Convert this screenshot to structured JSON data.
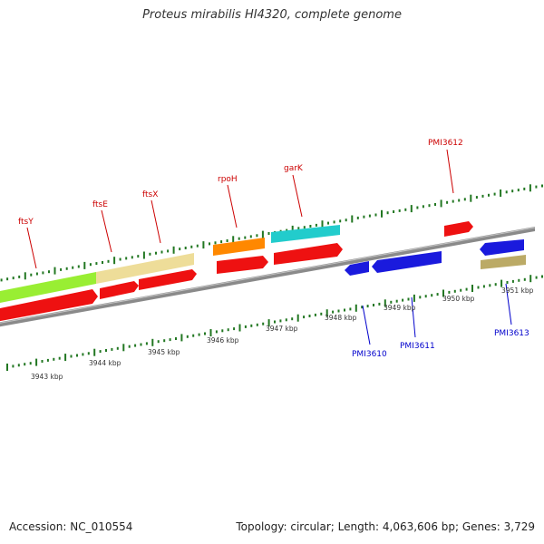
{
  "title": "Proteus mirabilis HI4320, complete genome",
  "footer": {
    "accession": "Accession: NC_010554",
    "summary": "Topology: circular; Length: 4,063,606 bp; Genes: 3,729"
  },
  "colors": {
    "forward_label": "#cc0000",
    "reverse_label": "#0000cc",
    "tick": "#227722",
    "backbone": "#8a8a8a",
    "cds": "#ee1111",
    "reverse_cds": "#1a1add"
  },
  "kbp_ticks": [
    "3943 kbp",
    "3944 kbp",
    "3945 kbp",
    "3946 kbp",
    "3947 kbp",
    "3948 kbp",
    "3949 kbp",
    "3950 kbp",
    "3951 kbp"
  ],
  "forward_genes": [
    {
      "label": "ftsY",
      "color": "#99ee33"
    },
    {
      "label": "ftsE",
      "color": "#eedd99"
    },
    {
      "label": "ftsX",
      "color": "#eedd99"
    },
    {
      "label": "rpoH",
      "color": "#ff8800"
    },
    {
      "label": "garK",
      "color": "#22cccc"
    },
    {
      "label": "PMI3612",
      "color": "#ee1111"
    }
  ],
  "reverse_genes": [
    {
      "label": "PMI3610",
      "color": "#1a1add"
    },
    {
      "label": "PMI3611",
      "color": "#1a1add"
    },
    {
      "label": "PMI3613",
      "color": "#bbaa66"
    }
  ]
}
